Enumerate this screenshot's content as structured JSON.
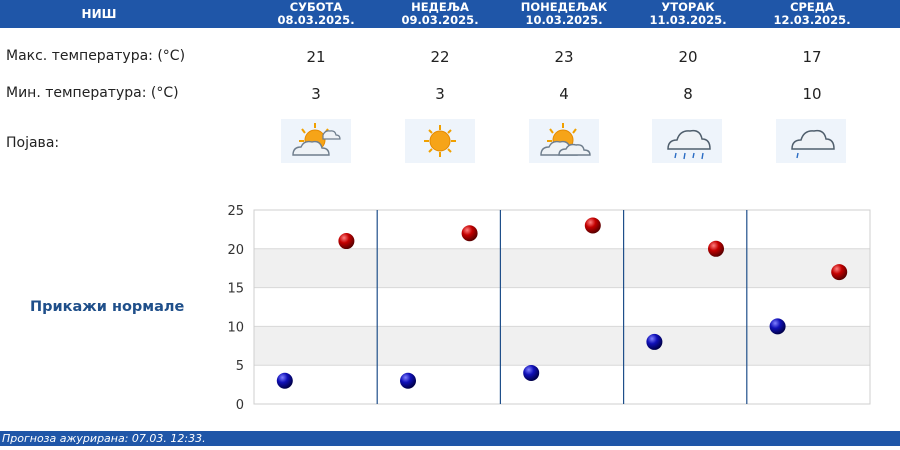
{
  "header": {
    "city": "НИШ",
    "days": [
      {
        "name": "СУБОТА",
        "date": "08.03.2025."
      },
      {
        "name": "НЕДЕЉА",
        "date": "09.03.2025."
      },
      {
        "name": "ПОНЕДЕЉАК",
        "date": "10.03.2025."
      },
      {
        "name": "УТОРАК",
        "date": "11.03.2025."
      },
      {
        "name": "СРЕДА",
        "date": "12.03.2025."
      }
    ]
  },
  "rows": {
    "max_label": "Макс. температура: (°C)",
    "min_label": "Мин. температура: (°C)",
    "phenomenon_label": "Појава:",
    "max": [
      "21",
      "22",
      "23",
      "20",
      "17"
    ],
    "min": [
      "3",
      "3",
      "4",
      "8",
      "10"
    ],
    "icons": [
      "partly-cloudy-sun-icon",
      "sun-icon",
      "partly-cloudy-sun-icon",
      "cloud-rain-icon",
      "cloud-light-rain-icon"
    ]
  },
  "show_normals": "Прикажи нормале",
  "footer": "Прогноза ажурирана:  07.03.  12:33.",
  "colors": {
    "header_bg": "#1f56a8",
    "max_marker": "#c40000",
    "min_marker": "#1010b8",
    "link": "#1f4f8a"
  },
  "chart_data": {
    "type": "scatter",
    "categories": [
      "08.03.2025.",
      "09.03.2025.",
      "10.03.2025.",
      "11.03.2025.",
      "12.03.2025."
    ],
    "series": [
      {
        "values": [
          3,
          3,
          4,
          8,
          10
        ]
      },
      {
        "values": [
          21,
          22,
          23,
          20,
          17
        ]
      }
    ],
    "ylim": [
      0,
      25
    ],
    "yticks": [
      "0",
      "5",
      "10",
      "15",
      "20",
      "25"
    ],
    "grid": true
  }
}
